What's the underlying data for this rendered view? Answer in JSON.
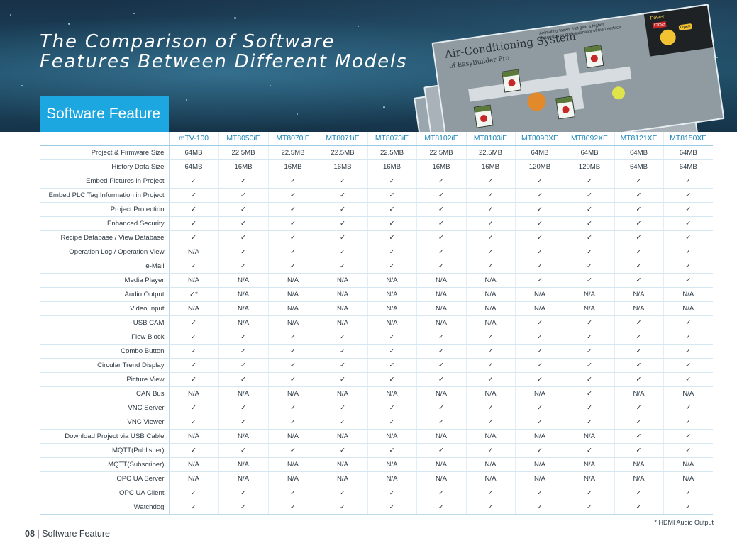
{
  "hero": {
    "title_line1": "The Comparison of Software",
    "title_line2": "Features Between Different Models",
    "section_tab": "Software Feature",
    "screen_title": "Air-Conditioning System",
    "screen_subtitle": "of EasyBuilder Pro",
    "screen_note": "Animating tables that give a higher dimension of professionality of the interface.",
    "power_label": "Power",
    "power_close": "Close",
    "power_open": "Open",
    "colors": {
      "banner": "#173148",
      "tab": "#1da7e0"
    }
  },
  "table": {
    "models": [
      "mTV-100",
      "MT8050iE",
      "MT8070iE",
      "MT8071iE",
      "MT8073iE",
      "MT8102iE",
      "MT8103iE",
      "MT8090XE",
      "MT8092XE",
      "MT8121XE",
      "MT8150XE"
    ],
    "rows": [
      {
        "feature": "Project & Firmware Size",
        "values": [
          "64MB",
          "22.5MB",
          "22.5MB",
          "22.5MB",
          "22.5MB",
          "22.5MB",
          "22.5MB",
          "64MB",
          "64MB",
          "64MB",
          "64MB"
        ]
      },
      {
        "feature": "History Data Size",
        "values": [
          "64MB",
          "16MB",
          "16MB",
          "16MB",
          "16MB",
          "16MB",
          "16MB",
          "120MB",
          "120MB",
          "64MB",
          "64MB"
        ]
      },
      {
        "feature": "Embed Pictures in Project",
        "values": [
          "✓",
          "✓",
          "✓",
          "✓",
          "✓",
          "✓",
          "✓",
          "✓",
          "✓",
          "✓",
          "✓"
        ]
      },
      {
        "feature": "Embed PLC Tag Information in Project",
        "values": [
          "✓",
          "✓",
          "✓",
          "✓",
          "✓",
          "✓",
          "✓",
          "✓",
          "✓",
          "✓",
          "✓"
        ]
      },
      {
        "feature": "Project Protection",
        "values": [
          "✓",
          "✓",
          "✓",
          "✓",
          "✓",
          "✓",
          "✓",
          "✓",
          "✓",
          "✓",
          "✓"
        ]
      },
      {
        "feature": "Enhanced Security",
        "values": [
          "✓",
          "✓",
          "✓",
          "✓",
          "✓",
          "✓",
          "✓",
          "✓",
          "✓",
          "✓",
          "✓"
        ]
      },
      {
        "feature": "Recipe Database / View Database",
        "values": [
          "✓",
          "✓",
          "✓",
          "✓",
          "✓",
          "✓",
          "✓",
          "✓",
          "✓",
          "✓",
          "✓"
        ]
      },
      {
        "feature": "Operation Log / Operation View",
        "values": [
          "N/A",
          "✓",
          "✓",
          "✓",
          "✓",
          "✓",
          "✓",
          "✓",
          "✓",
          "✓",
          "✓"
        ]
      },
      {
        "feature": "e-Mail",
        "values": [
          "✓",
          "✓",
          "✓",
          "✓",
          "✓",
          "✓",
          "✓",
          "✓",
          "✓",
          "✓",
          "✓"
        ]
      },
      {
        "feature": "Media Player",
        "values": [
          "N/A",
          "N/A",
          "N/A",
          "N/A",
          "N/A",
          "N/A",
          "N/A",
          "✓",
          "✓",
          "✓",
          "✓"
        ]
      },
      {
        "feature": "Audio Output",
        "values": [
          "✓*",
          "N/A",
          "N/A",
          "N/A",
          "N/A",
          "N/A",
          "N/A",
          "N/A",
          "N/A",
          "N/A",
          "N/A"
        ]
      },
      {
        "feature": "Video Input",
        "values": [
          "N/A",
          "N/A",
          "N/A",
          "N/A",
          "N/A",
          "N/A",
          "N/A",
          "N/A",
          "N/A",
          "N/A",
          "N/A"
        ]
      },
      {
        "feature": "USB CAM",
        "values": [
          "✓",
          "N/A",
          "N/A",
          "N/A",
          "N/A",
          "N/A",
          "N/A",
          "✓",
          "✓",
          "✓",
          "✓"
        ]
      },
      {
        "feature": "Flow Block",
        "values": [
          "✓",
          "✓",
          "✓",
          "✓",
          "✓",
          "✓",
          "✓",
          "✓",
          "✓",
          "✓",
          "✓"
        ]
      },
      {
        "feature": "Combo Button",
        "values": [
          "✓",
          "✓",
          "✓",
          "✓",
          "✓",
          "✓",
          "✓",
          "✓",
          "✓",
          "✓",
          "✓"
        ]
      },
      {
        "feature": "Circular Trend Display",
        "values": [
          "✓",
          "✓",
          "✓",
          "✓",
          "✓",
          "✓",
          "✓",
          "✓",
          "✓",
          "✓",
          "✓"
        ]
      },
      {
        "feature": "Picture View",
        "values": [
          "✓",
          "✓",
          "✓",
          "✓",
          "✓",
          "✓",
          "✓",
          "✓",
          "✓",
          "✓",
          "✓"
        ]
      },
      {
        "feature": "CAN Bus",
        "values": [
          "N/A",
          "N/A",
          "N/A",
          "N/A",
          "N/A",
          "N/A",
          "N/A",
          "N/A",
          "✓",
          "N/A",
          "N/A"
        ]
      },
      {
        "feature": "VNC Server",
        "values": [
          "✓",
          "✓",
          "✓",
          "✓",
          "✓",
          "✓",
          "✓",
          "✓",
          "✓",
          "✓",
          "✓"
        ]
      },
      {
        "feature": "VNC Viewer",
        "values": [
          "✓",
          "✓",
          "✓",
          "✓",
          "✓",
          "✓",
          "✓",
          "✓",
          "✓",
          "✓",
          "✓"
        ]
      },
      {
        "feature": "Download Project via USB Cable",
        "values": [
          "N/A",
          "N/A",
          "N/A",
          "N/A",
          "N/A",
          "N/A",
          "N/A",
          "N/A",
          "N/A",
          "✓",
          "✓"
        ]
      },
      {
        "feature": "MQTT(Publisher)",
        "values": [
          "✓",
          "✓",
          "✓",
          "✓",
          "✓",
          "✓",
          "✓",
          "✓",
          "✓",
          "✓",
          "✓"
        ]
      },
      {
        "feature": "MQTT(Subscriber)",
        "values": [
          "N/A",
          "N/A",
          "N/A",
          "N/A",
          "N/A",
          "N/A",
          "N/A",
          "N/A",
          "N/A",
          "N/A",
          "N/A"
        ]
      },
      {
        "feature": "OPC UA Server",
        "values": [
          "N/A",
          "N/A",
          "N/A",
          "N/A",
          "N/A",
          "N/A",
          "N/A",
          "N/A",
          "N/A",
          "N/A",
          "N/A"
        ]
      },
      {
        "feature": "OPC UA Client",
        "values": [
          "✓",
          "✓",
          "✓",
          "✓",
          "✓",
          "✓",
          "✓",
          "✓",
          "✓",
          "✓",
          "✓"
        ]
      },
      {
        "feature": "Watchdog",
        "values": [
          "✓",
          "✓",
          "✓",
          "✓",
          "✓",
          "✓",
          "✓",
          "✓",
          "✓",
          "✓",
          "✓"
        ]
      }
    ],
    "colors": {
      "header_text": "#1a84b8",
      "row_line": "#d6e7f1"
    }
  },
  "footnote": "* HDMI Audio Output",
  "footer": {
    "page_number": "08",
    "separator": " | ",
    "section": "Software Feature"
  }
}
